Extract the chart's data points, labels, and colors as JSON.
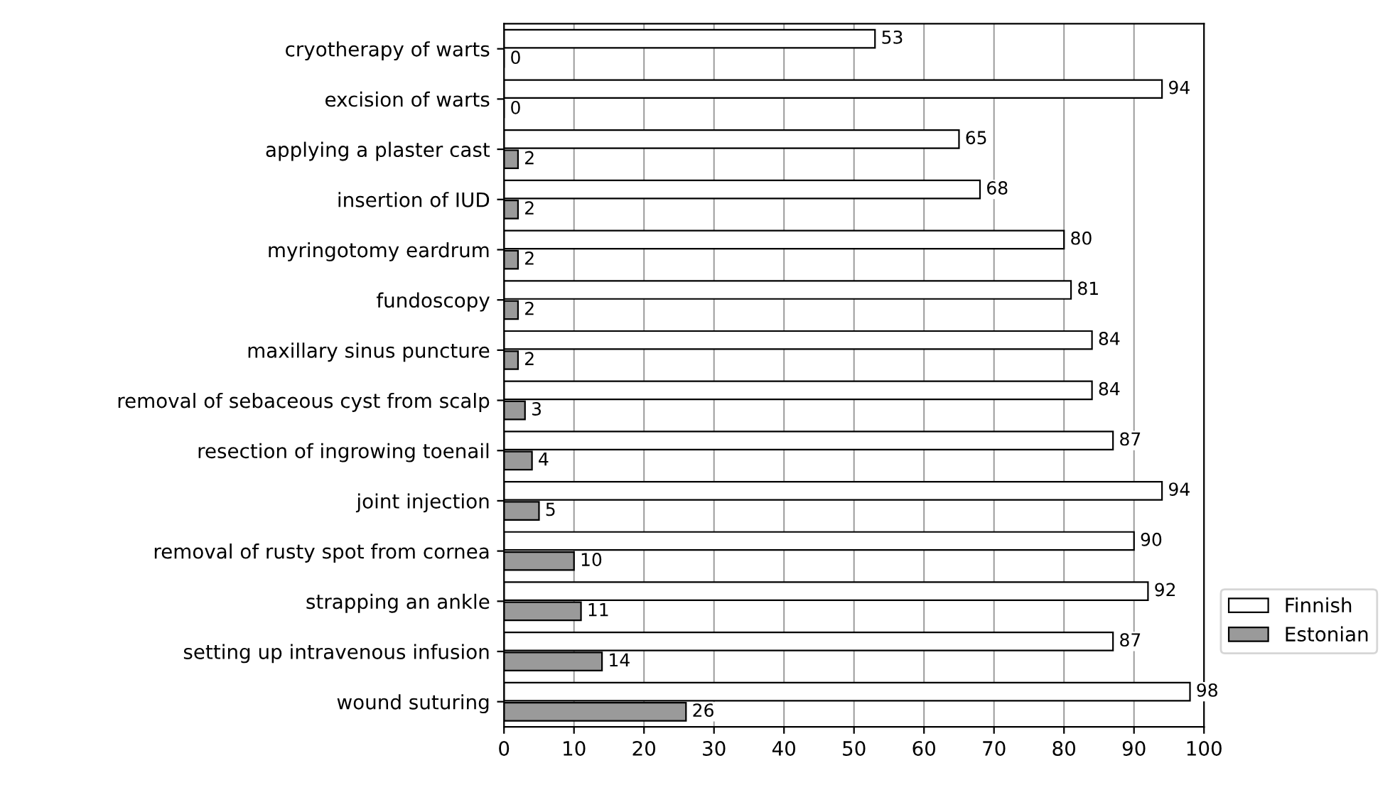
{
  "chart_data": {
    "type": "bar",
    "orientation": "horizontal",
    "categories": [
      "cryotherapy of warts",
      "excision of warts",
      "applying a plaster cast",
      "insertion of IUD",
      "myringotomy eardrum",
      "fundoscopy",
      "maxillary sinus puncture",
      "removal of sebaceous cyst from scalp",
      "resection of ingrowing toenail",
      "joint injection",
      "removal of rusty spot from cornea",
      "strapping an ankle",
      "setting up intravenous infusion",
      "wound suturing"
    ],
    "series": [
      {
        "name": "Finnish",
        "color": "#ffffff",
        "values": [
          53,
          94,
          65,
          68,
          80,
          81,
          84,
          84,
          87,
          94,
          90,
          92,
          87,
          98
        ]
      },
      {
        "name": "Estonian",
        "color": "#9a9a9a",
        "values": [
          0,
          0,
          2,
          2,
          2,
          2,
          2,
          3,
          4,
          5,
          10,
          11,
          14,
          26
        ]
      }
    ],
    "xlim": [
      0,
      100
    ],
    "xticks": [
      0,
      10,
      20,
      30,
      40,
      50,
      60,
      70,
      80,
      90,
      100
    ],
    "grid": "x",
    "legend": "right",
    "data_labels": true
  }
}
